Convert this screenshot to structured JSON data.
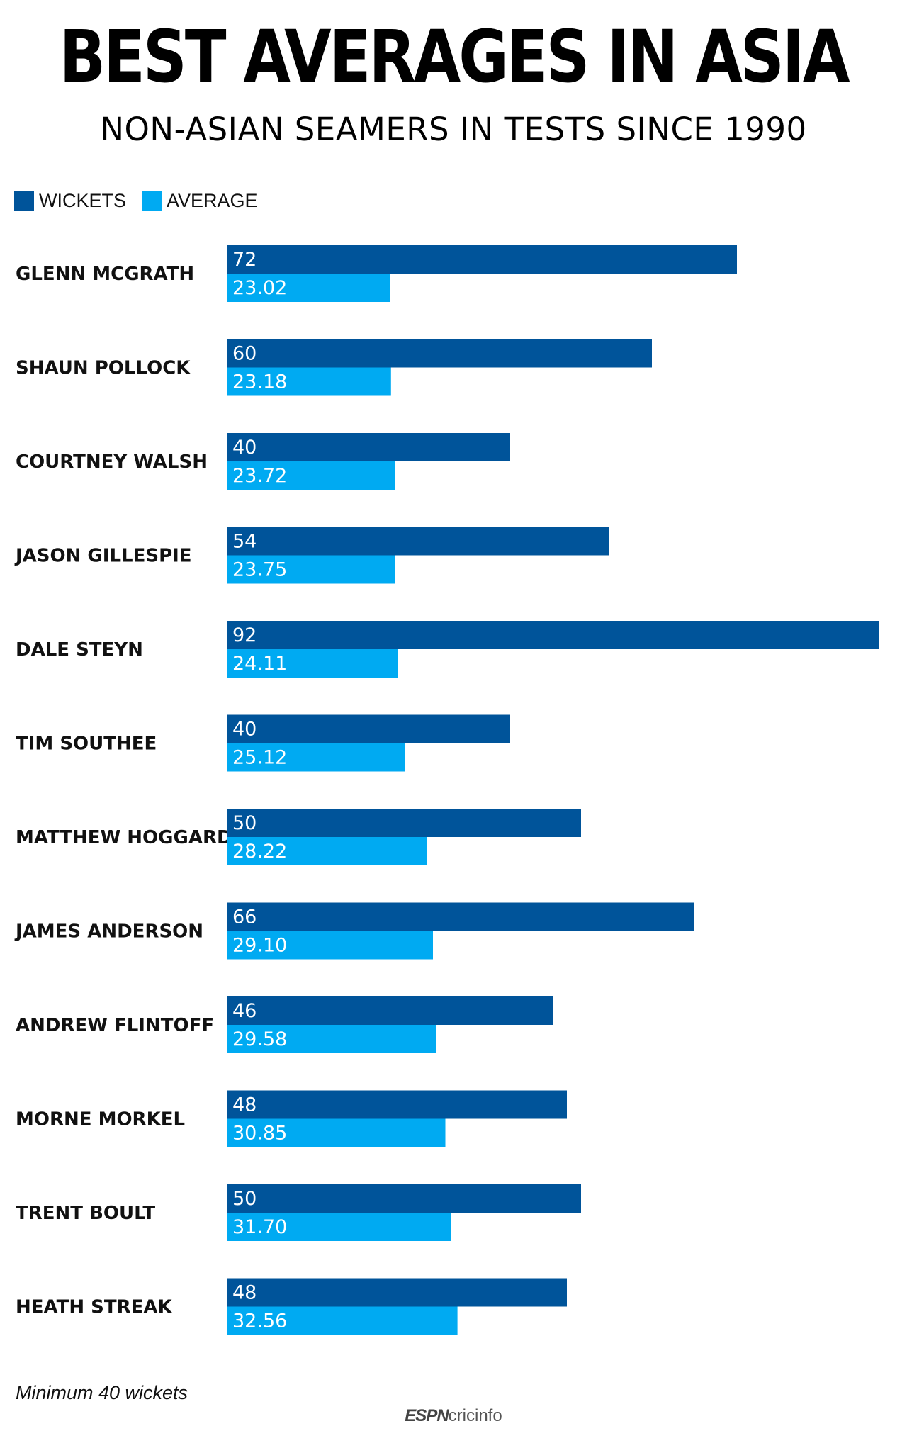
{
  "chart_data": {
    "type": "bar",
    "orientation": "horizontal",
    "title": "BEST AVERAGES IN ASIA",
    "subtitle": "NON-ASIAN SEAMERS IN TESTS SINCE 1990",
    "categories": [
      "GLENN MCGRATH",
      "SHAUN POLLOCK",
      "COURTNEY WALSH",
      "JASON GILLESPIE",
      "DALE STEYN",
      "TIM SOUTHEE",
      "MATTHEW HOGGARD",
      "JAMES ANDERSON",
      "ANDREW FLINTOFF",
      "MORNE MORKEL",
      "TRENT BOULT",
      "HEATH STREAK"
    ],
    "series": [
      {
        "name": "WICKETS",
        "color": "#00549a",
        "values": [
          72,
          60,
          40,
          54,
          92,
          40,
          50,
          66,
          46,
          48,
          50,
          48
        ],
        "labels": [
          "72",
          "60",
          "40",
          "54",
          "92",
          "40",
          "50",
          "66",
          "46",
          "48",
          "50",
          "48"
        ]
      },
      {
        "name": "AVERAGE",
        "color": "#00aaf2",
        "values": [
          23.02,
          23.18,
          23.72,
          23.75,
          24.11,
          25.12,
          28.22,
          29.1,
          29.58,
          30.85,
          31.7,
          32.56
        ],
        "labels": [
          "23.02",
          "23.18",
          "23.72",
          "23.75",
          "24.11",
          "25.12",
          "28.22",
          "29.10",
          "29.58",
          "30.85",
          "31.70",
          "32.56"
        ]
      }
    ],
    "xlim": [
      0,
      92
    ],
    "grid": false,
    "legend": "top-left"
  },
  "footnote": "Minimum 40 wickets",
  "brand": {
    "espn": "ESPN",
    "cricinfo": "cricinfo"
  }
}
